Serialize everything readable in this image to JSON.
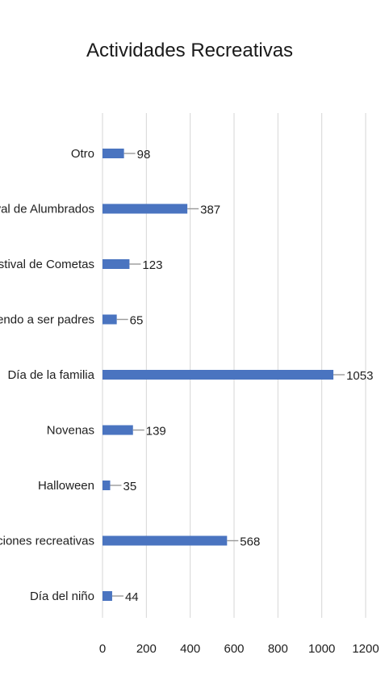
{
  "chart_data": {
    "type": "bar",
    "orientation": "horizontal",
    "title": "Actividades Recreativas",
    "xlabel": "",
    "ylabel": "",
    "categories": [
      "Otro",
      "Festival de Alumbrados",
      "Festival de Cometas",
      "Aprendiendo a ser padres",
      "Día de la familia",
      "Novenas",
      "Halloween",
      "Vacaciones recreativas",
      "Día del niño"
    ],
    "values": [
      98,
      387,
      123,
      65,
      1053,
      139,
      35,
      568,
      44
    ],
    "xlim": [
      0,
      1200
    ],
    "ticks": [
      0,
      200,
      400,
      600,
      800,
      1000,
      1200
    ],
    "grid": true,
    "legend": "none",
    "bar_color": "#4a74c0"
  }
}
